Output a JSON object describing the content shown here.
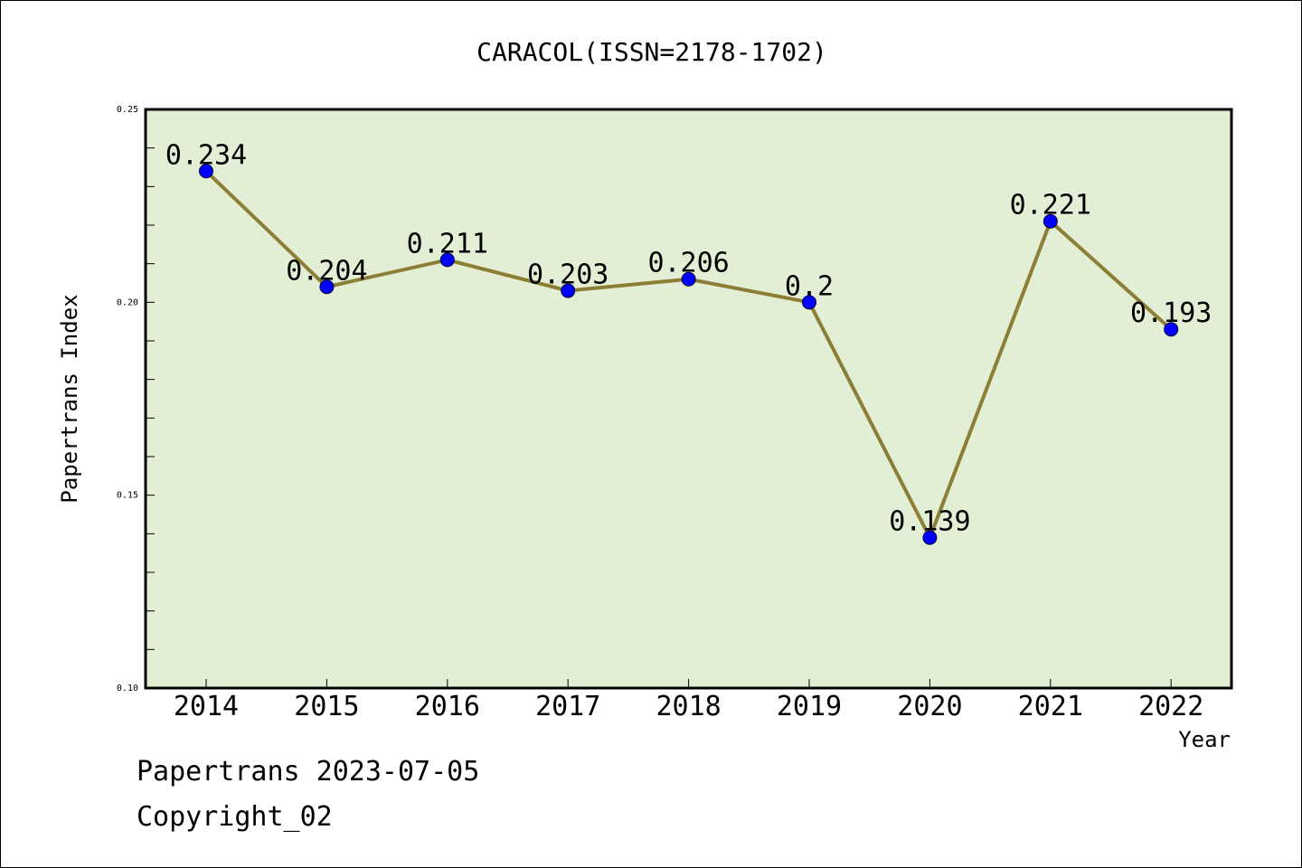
{
  "chart_data": {
    "type": "line",
    "title": "CARACOL(ISSN=2178-1702)",
    "xlabel": "Year",
    "ylabel": "Papertrans Index",
    "categories": [
      "2014",
      "2015",
      "2016",
      "2017",
      "2018",
      "2019",
      "2020",
      "2021",
      "2022"
    ],
    "series": [
      {
        "values": [
          0.234,
          0.204,
          0.211,
          0.203,
          0.206,
          0.2,
          0.139,
          0.221,
          0.193
        ],
        "labels": [
          "0.234",
          "0.204",
          "0.211",
          "0.203",
          "0.206",
          "0.2",
          "0.139",
          "0.221",
          "0.193"
        ],
        "line_color": "#8c7e34",
        "marker_color": "#0000ff"
      }
    ],
    "ylim": [
      0.1,
      0.25
    ],
    "yticks": [
      0.1,
      0.15,
      0.2,
      0.25
    ],
    "ytick_labels": [
      "0.10",
      "0.15",
      "0.20",
      "0.25"
    ],
    "plot_background": "#e2efd5",
    "grid": false
  },
  "footer": {
    "line1": "Papertrans 2023-07-05",
    "line2": "Copyright_02"
  }
}
